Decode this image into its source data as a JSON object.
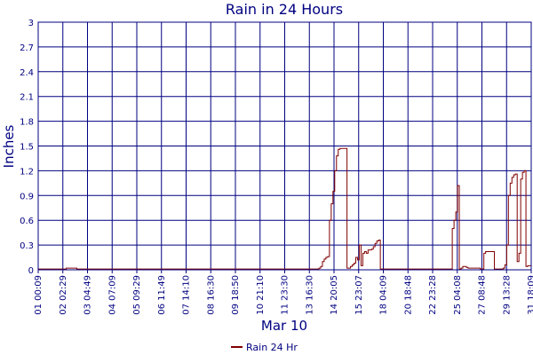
{
  "chart_data": {
    "type": "line",
    "title": "Rain in 24 Hours",
    "ylabel": "Inches",
    "xlabel": "Mar 10",
    "ylim": [
      0,
      3
    ],
    "y_ticks": [
      "0",
      "0.3",
      "0.6",
      "0.9",
      "1.2",
      "1.5",
      "1.8",
      "2.1",
      "2.4",
      "2.7",
      "3"
    ],
    "x_ticks": [
      "01 00:09",
      "02 02:29",
      "03 04:49",
      "04 07:09",
      "05 09:29",
      "06 11:49",
      "07 14:10",
      "08 16:30",
      "09 18:50",
      "10 21:10",
      "11 23:30",
      "13 16:30",
      "14 20:05",
      "15 23:07",
      "18 04:09",
      "20 18:48",
      "22 23:28",
      "25 04:08",
      "27 08:48",
      "29 13:28",
      "31 18:09"
    ],
    "grid": true,
    "legend_position": "bottom-center",
    "series": [
      {
        "name": "Rain 24 Hr",
        "color": "#800000",
        "values": [
          0.01,
          0.01,
          0.01,
          0.01,
          0.01,
          0.01,
          0.01,
          0.01,
          0.01,
          0.01,
          0.01,
          0.01,
          0.01,
          0.01,
          0.01,
          0.01,
          0.02,
          0.02,
          0.02,
          0.02,
          0.02,
          0.02,
          0.01,
          0.01,
          0.01,
          0.01,
          0.01,
          0.01,
          0.01,
          0.01,
          0.01,
          0.01,
          0.01,
          0.01,
          0.01,
          0.01,
          0.01,
          0.01,
          0.01,
          0.01,
          0.01,
          0.01,
          0.01,
          0.01,
          0.01,
          0.01,
          0.01,
          0.01,
          0.01,
          0.01,
          0.01,
          0.01,
          0.01,
          0.01,
          0.01,
          0.01,
          0.01,
          0.01,
          0.01,
          0.01,
          0.01,
          0.01,
          0.01,
          0.01,
          0.01,
          0.01,
          0.01,
          0.01,
          0.01,
          0.01,
          0.01,
          0.01,
          0.01,
          0.01,
          0.01,
          0.01,
          0.01,
          0.01,
          0.01,
          0.01,
          0.01,
          0.01,
          0.01,
          0.01,
          0.01,
          0.01,
          0.01,
          0.01,
          0.01,
          0.01,
          0.01,
          0.01,
          0.01,
          0.01,
          0.01,
          0.01,
          0.01,
          0.01,
          0.01,
          0.01,
          0.01,
          0.01,
          0.01,
          0.01,
          0.01,
          0.01,
          0.01,
          0.01,
          0.01,
          0.01,
          0.01,
          0.01,
          0.01,
          0.01,
          0.01,
          0.01,
          0.01,
          0.01,
          0.01,
          0.01,
          0.01,
          0.01,
          0.01,
          0.01,
          0.01,
          0.01,
          0.01,
          0.01,
          0.01,
          0.01,
          0.01,
          0.01,
          0.01,
          0.01,
          0.01,
          0.01,
          0.01,
          0.01,
          0.01,
          0.01,
          0.01,
          0.01,
          0.01,
          0.01,
          0.01,
          0.01,
          0.01,
          0.01,
          0.01,
          0.01,
          0.01,
          0.01,
          0.01,
          0.01,
          0.01,
          0.01,
          0.01,
          0.01,
          0.01,
          0.01,
          0.02,
          0.04,
          0.1,
          0.13,
          0.15,
          0.16,
          0.6,
          0.8,
          0.95,
          1.2,
          1.38,
          1.46,
          1.47,
          1.47,
          1.47,
          1.47,
          0.02,
          0.02,
          0.04,
          0.06,
          0.08,
          0.15,
          0.12,
          0.3,
          0.05,
          0.2,
          0.22,
          0.2,
          0.24,
          0.24,
          0.25,
          0.28,
          0.32,
          0.35,
          0.36,
          0.01,
          0.01,
          0.01,
          0.01,
          0.01,
          0.01,
          0.01,
          0.01,
          0.01,
          0.01,
          0.01,
          0.01,
          0.01,
          0.01,
          0.01,
          0.01,
          0.01,
          0.01,
          0.01,
          0.01,
          0.01,
          0.01,
          0.01,
          0.01,
          0.01,
          0.01,
          0.01,
          0.01,
          0.01,
          0.01,
          0.01,
          0.01,
          0.01,
          0.01,
          0.01,
          0.01,
          0.01,
          0.01,
          0.01,
          0.01,
          0.01,
          0.5,
          0.6,
          0.7,
          1.02,
          0.01,
          0.02,
          0.04,
          0.04,
          0.03,
          0.02,
          0.02,
          0.02,
          0.02,
          0.02,
          0.02,
          0.02,
          0.01,
          0.01,
          0.2,
          0.22,
          0.22,
          0.22,
          0.22,
          0.22,
          0.01,
          0.01,
          0.01,
          0.01,
          0.01,
          0.02,
          0.06,
          0.3,
          0.9,
          1.05,
          1.12,
          1.15,
          1.16,
          0.1,
          0.2,
          1.1,
          1.18,
          1.2,
          0.04,
          0.05,
          0.05,
          0.05
        ]
      }
    ]
  }
}
